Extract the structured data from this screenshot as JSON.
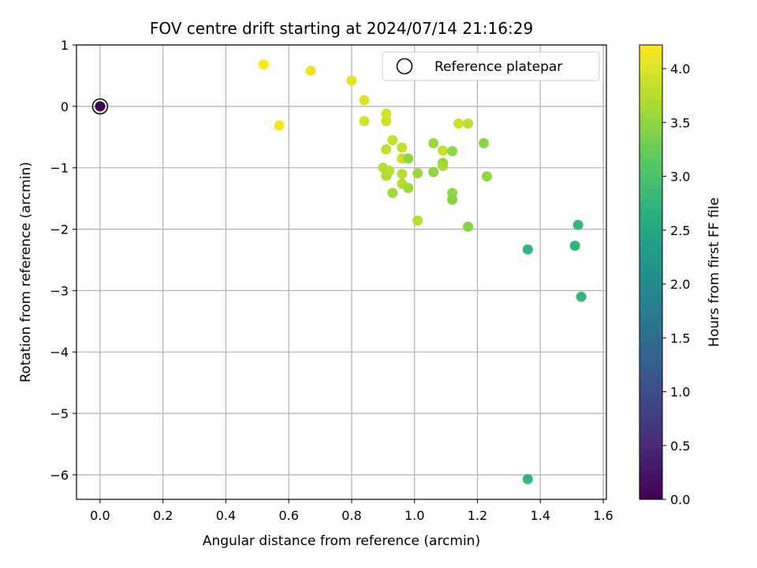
{
  "chart_data": {
    "type": "scatter",
    "title": "FOV centre drift starting at 2024/07/14 21:16:29",
    "xlabel": "Angular distance from reference (arcmin)",
    "ylabel": "Rotation from reference (arcmin)",
    "xlim": [
      -0.075,
      1.61
    ],
    "ylim": [
      -6.4,
      1.0
    ],
    "xticks": [
      0.0,
      0.2,
      0.4,
      0.6,
      0.8,
      1.0,
      1.2,
      1.4,
      1.6
    ],
    "xtick_labels": [
      "0.0",
      "0.2",
      "0.4",
      "0.6",
      "0.8",
      "1.0",
      "1.2",
      "1.4",
      "1.6"
    ],
    "yticks": [
      1,
      0,
      -1,
      -2,
      -3,
      -4,
      -5,
      -6
    ],
    "ytick_labels": [
      "1",
      "0",
      "−1",
      "−2",
      "−3",
      "−4",
      "−5",
      "−6"
    ],
    "grid": true,
    "legend": {
      "location": "top-right",
      "entries": [
        "Reference platepar"
      ]
    },
    "colorbar": {
      "label": "Hours from first FF file",
      "colormap": "viridis",
      "range": [
        0.0,
        4.22
      ],
      "ticks": [
        0.0,
        0.5,
        1.0,
        1.5,
        2.0,
        2.5,
        3.0,
        3.5,
        4.0
      ],
      "tick_labels": [
        "0.0",
        "0.5",
        "1.0",
        "1.5",
        "2.0",
        "2.5",
        "3.0",
        "3.5",
        "4.0"
      ]
    },
    "reference_point": {
      "x": 0.0,
      "y": 0.0,
      "hours": 0.0
    },
    "points": [
      {
        "x": 0.52,
        "y": 0.68,
        "hours": 4.2
      },
      {
        "x": 0.57,
        "y": -0.31,
        "hours": 4.15
      },
      {
        "x": 0.67,
        "y": 0.58,
        "hours": 4.1
      },
      {
        "x": 0.8,
        "y": 0.42,
        "hours": 4.05
      },
      {
        "x": 0.84,
        "y": 0.1,
        "hours": 4.0
      },
      {
        "x": 0.84,
        "y": -0.24,
        "hours": 3.95
      },
      {
        "x": 0.91,
        "y": -0.12,
        "hours": 3.95
      },
      {
        "x": 0.91,
        "y": -0.24,
        "hours": 3.9
      },
      {
        "x": 0.93,
        "y": -0.55,
        "hours": 3.85
      },
      {
        "x": 0.91,
        "y": -0.7,
        "hours": 3.8
      },
      {
        "x": 0.96,
        "y": -0.67,
        "hours": 3.85
      },
      {
        "x": 0.96,
        "y": -0.85,
        "hours": 3.9
      },
      {
        "x": 0.98,
        "y": -0.85,
        "hours": 3.5
      },
      {
        "x": 0.9,
        "y": -1.0,
        "hours": 3.75
      },
      {
        "x": 0.92,
        "y": -1.05,
        "hours": 3.8
      },
      {
        "x": 0.91,
        "y": -1.13,
        "hours": 3.7
      },
      {
        "x": 0.96,
        "y": -1.1,
        "hours": 3.75
      },
      {
        "x": 0.96,
        "y": -1.26,
        "hours": 3.75
      },
      {
        "x": 0.98,
        "y": -1.33,
        "hours": 3.6
      },
      {
        "x": 0.93,
        "y": -1.41,
        "hours": 3.6
      },
      {
        "x": 1.01,
        "y": -1.09,
        "hours": 3.55
      },
      {
        "x": 1.01,
        "y": -1.86,
        "hours": 3.75
      },
      {
        "x": 1.06,
        "y": -0.6,
        "hours": 3.55
      },
      {
        "x": 1.06,
        "y": -1.07,
        "hours": 3.5
      },
      {
        "x": 1.09,
        "y": -0.72,
        "hours": 3.85
      },
      {
        "x": 1.09,
        "y": -0.92,
        "hours": 3.5
      },
      {
        "x": 1.09,
        "y": -0.97,
        "hours": 3.65
      },
      {
        "x": 1.12,
        "y": -0.73,
        "hours": 3.5
      },
      {
        "x": 1.12,
        "y": -1.41,
        "hours": 3.5
      },
      {
        "x": 1.12,
        "y": -1.52,
        "hours": 3.45
      },
      {
        "x": 1.14,
        "y": -0.28,
        "hours": 3.9
      },
      {
        "x": 1.17,
        "y": -0.28,
        "hours": 3.8
      },
      {
        "x": 1.17,
        "y": -1.96,
        "hours": 3.45
      },
      {
        "x": 1.22,
        "y": -0.6,
        "hours": 3.45
      },
      {
        "x": 1.23,
        "y": -1.14,
        "hours": 3.5
      },
      {
        "x": 1.36,
        "y": -2.33,
        "hours": 2.75
      },
      {
        "x": 1.36,
        "y": -6.07,
        "hours": 2.8
      },
      {
        "x": 1.51,
        "y": -2.27,
        "hours": 2.75
      },
      {
        "x": 1.52,
        "y": -1.93,
        "hours": 2.8
      },
      {
        "x": 1.53,
        "y": -3.1,
        "hours": 2.8
      }
    ]
  }
}
